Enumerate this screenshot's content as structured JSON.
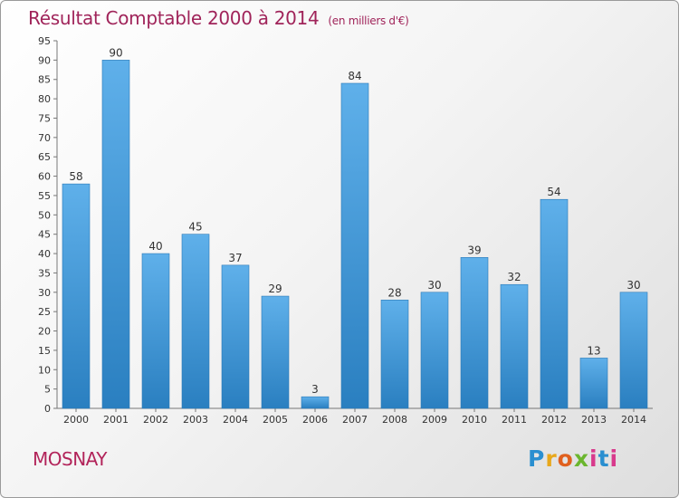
{
  "title": "Résultat Comptable 2000 à 2014",
  "unit_label": "(en milliers d'€)",
  "commune": "MOSNAY",
  "logo_text": "Proxiti",
  "colors": {
    "title": "#a0245a",
    "bar_top": "#5fb0ea",
    "bar_bottom": "#2a7fc0"
  },
  "chart_data": {
    "type": "bar",
    "title": "Résultat Comptable 2000 à 2014",
    "subtitle": "(en milliers d'€)",
    "categories": [
      "2000",
      "2001",
      "2002",
      "2003",
      "2004",
      "2005",
      "2006",
      "2007",
      "2008",
      "2009",
      "2010",
      "2011",
      "2012",
      "2013",
      "2014"
    ],
    "values": [
      58,
      90,
      40,
      45,
      37,
      29,
      3,
      84,
      28,
      30,
      39,
      32,
      54,
      13,
      30
    ],
    "ylim": [
      0,
      95
    ],
    "yticks": [
      0,
      5,
      10,
      15,
      20,
      25,
      30,
      35,
      40,
      45,
      50,
      55,
      60,
      65,
      70,
      75,
      80,
      85,
      90,
      95
    ],
    "grid": false,
    "legend": "none"
  }
}
